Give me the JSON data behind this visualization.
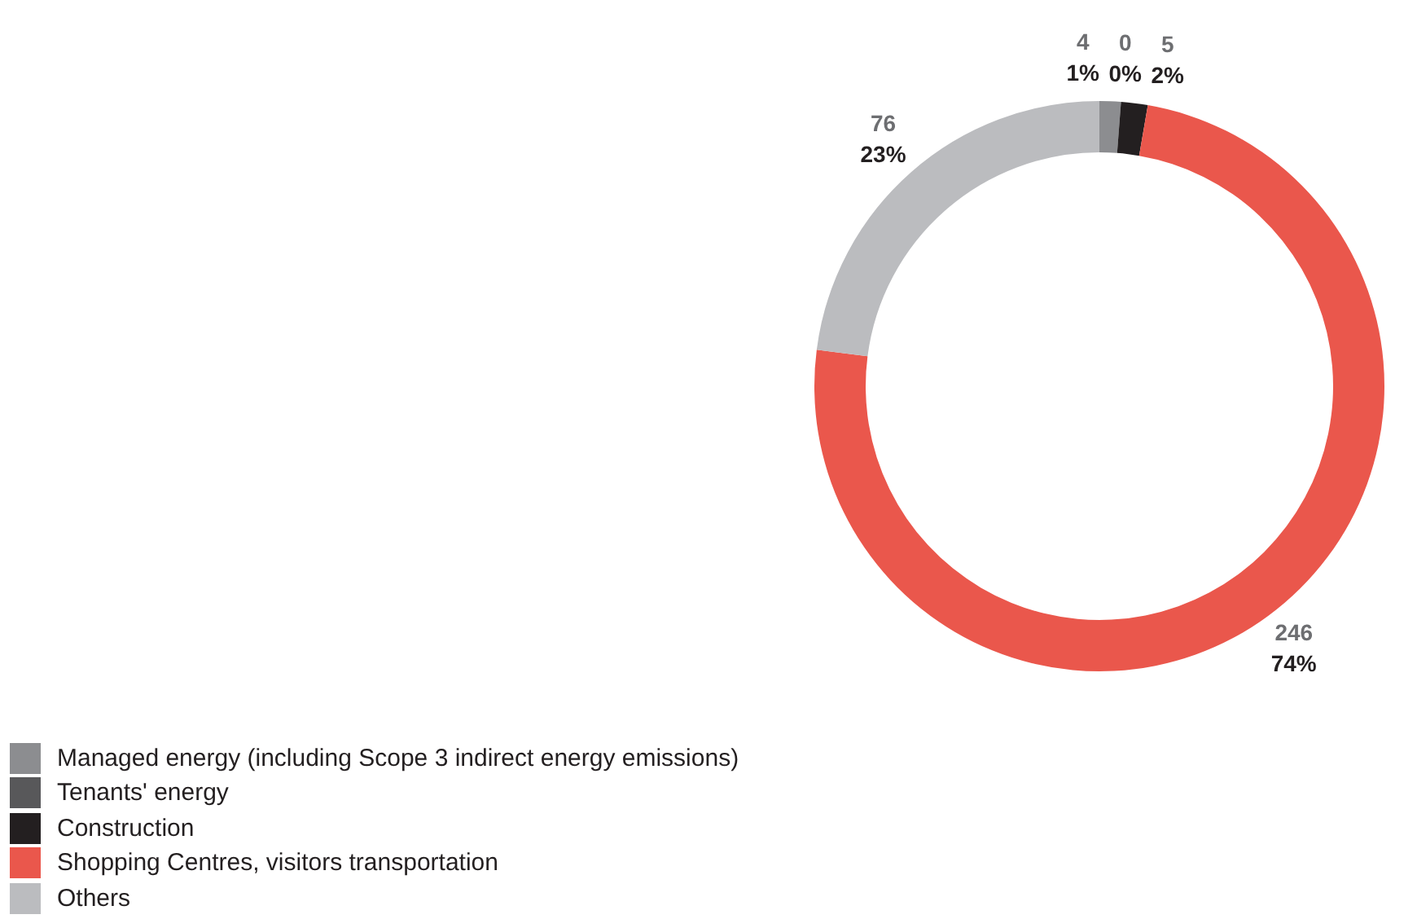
{
  "chart_data": {
    "type": "donut",
    "categories": [
      "Managed energy (including Scope 3 indirect energy emissions)",
      "Tenants' energy",
      "Construction",
      "Shopping Centres, visitors transportation",
      "Others"
    ],
    "values": [
      4,
      0,
      5,
      246,
      76
    ],
    "colors": [
      "#8c8d90",
      "#58585a",
      "#231f20",
      "#ea574c",
      "#bbbcbf"
    ],
    "value_labels": [
      "4\n1%",
      "0\n0%",
      "5\n2%",
      "246\n74%",
      "76\n23%"
    ],
    "legend": "bottom left"
  }
}
